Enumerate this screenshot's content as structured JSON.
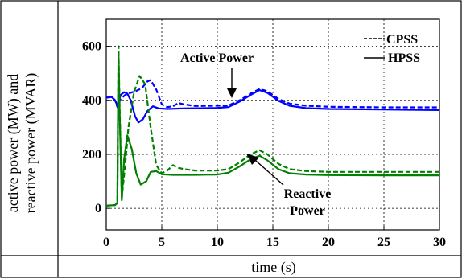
{
  "chart_data": {
    "type": "line",
    "xlabel": "time (s)",
    "ylabel_line1": "active power (MW) and",
    "ylabel_line2": "reactive power (MVAR)",
    "xlim": [
      0,
      30
    ],
    "ylim": [
      -80,
      700
    ],
    "xticks": [
      0,
      5,
      10,
      15,
      20,
      25,
      30
    ],
    "yticks": [
      0,
      200,
      400,
      600
    ],
    "grid": true,
    "legend_position": "top-right",
    "legend": [
      {
        "label": "CPSS",
        "dash": true
      },
      {
        "label": "HPSS",
        "dash": false
      }
    ],
    "annotations": {
      "active": "Active Power",
      "reactive_line1": "Reactive",
      "reactive_line2": "Power"
    },
    "colors": {
      "active": "#0000ff",
      "reactive": "#008000"
    },
    "series": [
      {
        "name": "HPSS",
        "quantity": "active",
        "dash": false,
        "points": [
          [
            0,
            410
          ],
          [
            0.5,
            412
          ],
          [
            0.8,
            400
          ],
          [
            1.0,
            380
          ],
          [
            1.3,
            420
          ],
          [
            1.6,
            430
          ],
          [
            1.9,
            425
          ],
          [
            2.2,
            400
          ],
          [
            2.6,
            340
          ],
          [
            2.9,
            318
          ],
          [
            3.3,
            330
          ],
          [
            3.7,
            360
          ],
          [
            4.2,
            378
          ],
          [
            4.7,
            370
          ],
          [
            5.5,
            368
          ],
          [
            7,
            370
          ],
          [
            9,
            371
          ],
          [
            10,
            372
          ],
          [
            11,
            375
          ],
          [
            12,
            395
          ],
          [
            13,
            420
          ],
          [
            13.8,
            438
          ],
          [
            14.5,
            428
          ],
          [
            15.5,
            398
          ],
          [
            16.5,
            380
          ],
          [
            18,
            371
          ],
          [
            20,
            368
          ],
          [
            25,
            366
          ],
          [
            30,
            364
          ]
        ]
      },
      {
        "name": "CPSS",
        "quantity": "active",
        "dash": true,
        "points": [
          [
            0,
            410
          ],
          [
            0.5,
            412
          ],
          [
            0.8,
            400
          ],
          [
            1.0,
            375
          ],
          [
            1.3,
            405
          ],
          [
            1.7,
            420
          ],
          [
            2.2,
            428
          ],
          [
            2.7,
            435
          ],
          [
            3.2,
            445
          ],
          [
            3.7,
            470
          ],
          [
            4.0,
            475
          ],
          [
            4.5,
            440
          ],
          [
            5.0,
            385
          ],
          [
            5.5,
            375
          ],
          [
            6,
            378
          ],
          [
            6.5,
            390
          ],
          [
            7,
            385
          ],
          [
            8,
            379
          ],
          [
            10,
            380
          ],
          [
            11,
            381
          ],
          [
            12,
            400
          ],
          [
            13,
            425
          ],
          [
            13.8,
            442
          ],
          [
            14.5,
            434
          ],
          [
            15.5,
            405
          ],
          [
            16.5,
            388
          ],
          [
            18,
            380
          ],
          [
            20,
            376
          ],
          [
            25,
            374
          ],
          [
            30,
            374
          ]
        ]
      },
      {
        "name": "HPSS",
        "quantity": "reactive",
        "dash": false,
        "points": [
          [
            0,
            10
          ],
          [
            0.8,
            12
          ],
          [
            1.0,
            20
          ],
          [
            1.1,
            580
          ],
          [
            1.2,
            360
          ],
          [
            1.4,
            30
          ],
          [
            1.6,
            180
          ],
          [
            1.9,
            270
          ],
          [
            2.3,
            220
          ],
          [
            2.7,
            130
          ],
          [
            3.1,
            88
          ],
          [
            3.6,
            100
          ],
          [
            4.0,
            135
          ],
          [
            4.5,
            138
          ],
          [
            5,
            126
          ],
          [
            6,
            124
          ],
          [
            8,
            124
          ],
          [
            10,
            125
          ],
          [
            11,
            132
          ],
          [
            12,
            155
          ],
          [
            13,
            182
          ],
          [
            13.8,
            195
          ],
          [
            14.5,
            178
          ],
          [
            15.5,
            145
          ],
          [
            16.5,
            130
          ],
          [
            18,
            125
          ],
          [
            20,
            123
          ],
          [
            25,
            122
          ],
          [
            30,
            122
          ]
        ]
      },
      {
        "name": "CPSS",
        "quantity": "reactive",
        "dash": true,
        "points": [
          [
            0,
            10
          ],
          [
            0.8,
            12
          ],
          [
            1.0,
            20
          ],
          [
            1.1,
            600
          ],
          [
            1.2,
            380
          ],
          [
            1.4,
            40
          ],
          [
            1.7,
            160
          ],
          [
            2.0,
            300
          ],
          [
            2.5,
            430
          ],
          [
            3.0,
            490
          ],
          [
            3.5,
            460
          ],
          [
            4.0,
            300
          ],
          [
            4.5,
            160
          ],
          [
            5.0,
            130
          ],
          [
            5.5,
            140
          ],
          [
            6.0,
            160
          ],
          [
            6.5,
            150
          ],
          [
            7,
            145
          ],
          [
            8,
            140
          ],
          [
            10,
            140
          ],
          [
            11,
            145
          ],
          [
            12,
            170
          ],
          [
            13,
            200
          ],
          [
            13.8,
            215
          ],
          [
            14.5,
            200
          ],
          [
            15.5,
            165
          ],
          [
            16.5,
            145
          ],
          [
            18,
            138
          ],
          [
            20,
            135
          ],
          [
            25,
            135
          ],
          [
            30,
            135
          ]
        ]
      }
    ]
  }
}
